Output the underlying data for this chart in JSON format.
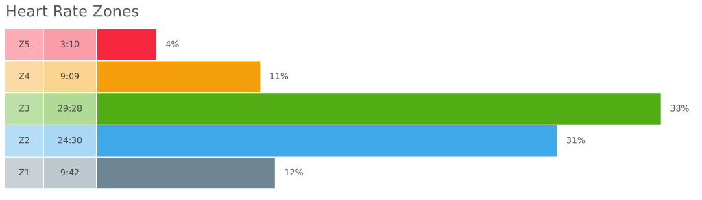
{
  "chart_data": {
    "type": "bar",
    "orientation": "horizontal",
    "title": "Heart Rate Zones",
    "categories": [
      "Z5",
      "Z4",
      "Z3",
      "Z2",
      "Z1"
    ],
    "values": [
      4,
      11,
      38,
      31,
      12
    ],
    "colors": [
      "#f7263f",
      "#f59f0d",
      "#52ad14",
      "#3ea8e8",
      "#6e8594"
    ],
    "value_labels": [
      "4%",
      "11%",
      "38%",
      "31%",
      "12%"
    ],
    "annotations": [
      "3:10",
      "9:09",
      "29:28",
      "24:30",
      "9:42"
    ]
  }
}
